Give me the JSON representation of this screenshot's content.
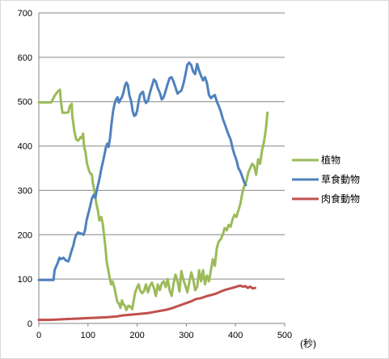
{
  "chart_data": {
    "type": "line",
    "xlim": [
      0,
      500
    ],
    "ylim": [
      0,
      700
    ],
    "x_ticks": [
      "0",
      "100",
      "200",
      "300",
      "400",
      "500"
    ],
    "y_ticks": [
      "0",
      "100",
      "200",
      "300",
      "400",
      "500",
      "600",
      "700"
    ],
    "x_unit_label": "(秒)",
    "grid": "horizontal",
    "legend_position": "right",
    "series": [
      {
        "name": "植物",
        "color": "#9bbb59",
        "points": [
          [
            0,
            498
          ],
          [
            25,
            498
          ],
          [
            33,
            515
          ],
          [
            38,
            522
          ],
          [
            43,
            527
          ],
          [
            45,
            500
          ],
          [
            48,
            475
          ],
          [
            55,
            475
          ],
          [
            60,
            476
          ],
          [
            63,
            490
          ],
          [
            67,
            495
          ],
          [
            68,
            470
          ],
          [
            72,
            435
          ],
          [
            76,
            415
          ],
          [
            80,
            412
          ],
          [
            85,
            420
          ],
          [
            88,
            418
          ],
          [
            90,
            428
          ],
          [
            92,
            400
          ],
          [
            95,
            385
          ],
          [
            98,
            360
          ],
          [
            102,
            345
          ],
          [
            105,
            338
          ],
          [
            108,
            335
          ],
          [
            110,
            315
          ],
          [
            113,
            300
          ],
          [
            117,
            270
          ],
          [
            120,
            255
          ],
          [
            123,
            232
          ],
          [
            127,
            240
          ],
          [
            130,
            225
          ],
          [
            133,
            196
          ],
          [
            136,
            165
          ],
          [
            138,
            140
          ],
          [
            141,
            122
          ],
          [
            144,
            103
          ],
          [
            147,
            88
          ],
          [
            150,
            95
          ],
          [
            154,
            80
          ],
          [
            157,
            62
          ],
          [
            160,
            48
          ],
          [
            163,
            45
          ],
          [
            166,
            35
          ],
          [
            169,
            52
          ],
          [
            172,
            43
          ],
          [
            175,
            40
          ],
          [
            178,
            30
          ],
          [
            182,
            40
          ],
          [
            186,
            38
          ],
          [
            190,
            32
          ],
          [
            193,
            52
          ],
          [
            196,
            70
          ],
          [
            200,
            82
          ],
          [
            203,
            88
          ],
          [
            206,
            75
          ],
          [
            210,
            68
          ],
          [
            214,
            73
          ],
          [
            218,
            88
          ],
          [
            222,
            70
          ],
          [
            226,
            85
          ],
          [
            230,
            92
          ],
          [
            234,
            80
          ],
          [
            238,
            62
          ],
          [
            242,
            88
          ],
          [
            246,
            75
          ],
          [
            250,
            90
          ],
          [
            254,
            95
          ],
          [
            258,
            82
          ],
          [
            262,
            100
          ],
          [
            266,
            75
          ],
          [
            270,
            62
          ],
          [
            274,
            90
          ],
          [
            278,
            110
          ],
          [
            282,
            95
          ],
          [
            286,
            72
          ],
          [
            290,
            118
          ],
          [
            294,
            98
          ],
          [
            298,
            85
          ],
          [
            302,
            70
          ],
          [
            306,
            92
          ],
          [
            310,
            115
          ],
          [
            314,
            100
          ],
          [
            318,
            75
          ],
          [
            322,
            82
          ],
          [
            326,
            120
          ],
          [
            330,
            95
          ],
          [
            334,
            120
          ],
          [
            338,
            88
          ],
          [
            342,
            108
          ],
          [
            346,
            95
          ],
          [
            350,
            120
          ],
          [
            354,
            145
          ],
          [
            358,
            130
          ],
          [
            362,
            170
          ],
          [
            366,
            185
          ],
          [
            370,
            190
          ],
          [
            374,
            200
          ],
          [
            378,
            215
          ],
          [
            382,
            210
          ],
          [
            386,
            222
          ],
          [
            390,
            218
          ],
          [
            394,
            235
          ],
          [
            398,
            245
          ],
          [
            402,
            240
          ],
          [
            406,
            255
          ],
          [
            410,
            270
          ],
          [
            414,
            295
          ],
          [
            418,
            310
          ],
          [
            422,
            320
          ],
          [
            426,
            340
          ],
          [
            430,
            350
          ],
          [
            434,
            360
          ],
          [
            438,
            355
          ],
          [
            442,
            335
          ],
          [
            446,
            370
          ],
          [
            450,
            360
          ],
          [
            454,
            390
          ],
          [
            458,
            410
          ],
          [
            462,
            440
          ],
          [
            465,
            475
          ]
        ]
      },
      {
        "name": "草食動物",
        "color": "#4f81bd",
        "points": [
          [
            0,
            98
          ],
          [
            30,
            98
          ],
          [
            32,
            120
          ],
          [
            35,
            128
          ],
          [
            38,
            135
          ],
          [
            42,
            148
          ],
          [
            45,
            145
          ],
          [
            50,
            148
          ],
          [
            55,
            142
          ],
          [
            60,
            140
          ],
          [
            63,
            150
          ],
          [
            67,
            165
          ],
          [
            70,
            175
          ],
          [
            73,
            190
          ],
          [
            76,
            200
          ],
          [
            80,
            205
          ],
          [
            84,
            203
          ],
          [
            88,
            202
          ],
          [
            91,
            200
          ],
          [
            94,
            210
          ],
          [
            97,
            232
          ],
          [
            100,
            245
          ],
          [
            104,
            262
          ],
          [
            108,
            282
          ],
          [
            112,
            290
          ],
          [
            115,
            283
          ],
          [
            118,
            300
          ],
          [
            121,
            315
          ],
          [
            124,
            330
          ],
          [
            127,
            348
          ],
          [
            130,
            362
          ],
          [
            133,
            378
          ],
          [
            136,
            395
          ],
          [
            139,
            405
          ],
          [
            142,
            398
          ],
          [
            145,
            420
          ],
          [
            148,
            452
          ],
          [
            151,
            478
          ],
          [
            154,
            495
          ],
          [
            157,
            505
          ],
          [
            160,
            510
          ],
          [
            163,
            498
          ],
          [
            166,
            505
          ],
          [
            169,
            510
          ],
          [
            172,
            520
          ],
          [
            175,
            535
          ],
          [
            178,
            543
          ],
          [
            181,
            538
          ],
          [
            184,
            515
          ],
          [
            188,
            500
          ],
          [
            191,
            478
          ],
          [
            194,
            468
          ],
          [
            197,
            470
          ],
          [
            200,
            480
          ],
          [
            203,
            500
          ],
          [
            206,
            515
          ],
          [
            209,
            520
          ],
          [
            212,
            522
          ],
          [
            215,
            505
          ],
          [
            218,
            497
          ],
          [
            222,
            502
          ],
          [
            226,
            520
          ],
          [
            230,
            535
          ],
          [
            234,
            550
          ],
          [
            238,
            545
          ],
          [
            242,
            530
          ],
          [
            246,
            520
          ],
          [
            250,
            505
          ],
          [
            254,
            510
          ],
          [
            258,
            525
          ],
          [
            262,
            540
          ],
          [
            266,
            553
          ],
          [
            270,
            555
          ],
          [
            274,
            545
          ],
          [
            278,
            532
          ],
          [
            282,
            518
          ],
          [
            286,
            522
          ],
          [
            290,
            525
          ],
          [
            294,
            540
          ],
          [
            298,
            560
          ],
          [
            302,
            583
          ],
          [
            306,
            588
          ],
          [
            310,
            582
          ],
          [
            314,
            568
          ],
          [
            318,
            562
          ],
          [
            322,
            585
          ],
          [
            326,
            570
          ],
          [
            330,
            558
          ],
          [
            334,
            548
          ],
          [
            338,
            555
          ],
          [
            342,
            542
          ],
          [
            346,
            515
          ],
          [
            350,
            508
          ],
          [
            354,
            512
          ],
          [
            358,
            515
          ],
          [
            362,
            500
          ],
          [
            366,
            490
          ],
          [
            370,
            478
          ],
          [
            374,
            462
          ],
          [
            378,
            450
          ],
          [
            382,
            437
          ],
          [
            386,
            425
          ],
          [
            390,
            415
          ],
          [
            394,
            395
          ],
          [
            398,
            380
          ],
          [
            402,
            368
          ],
          [
            406,
            350
          ],
          [
            410,
            342
          ],
          [
            414,
            330
          ],
          [
            418,
            318
          ],
          [
            421,
            312
          ]
        ]
      },
      {
        "name": "肉食動物",
        "color": "#c0504d",
        "points": [
          [
            0,
            8
          ],
          [
            20,
            8
          ],
          [
            40,
            9
          ],
          [
            60,
            10
          ],
          [
            80,
            11
          ],
          [
            100,
            12
          ],
          [
            120,
            13
          ],
          [
            140,
            14
          ],
          [
            150,
            15
          ],
          [
            160,
            16
          ],
          [
            170,
            18
          ],
          [
            180,
            19
          ],
          [
            190,
            20
          ],
          [
            200,
            21
          ],
          [
            210,
            22
          ],
          [
            220,
            23
          ],
          [
            230,
            25
          ],
          [
            240,
            27
          ],
          [
            250,
            29
          ],
          [
            260,
            31
          ],
          [
            270,
            34
          ],
          [
            280,
            38
          ],
          [
            290,
            42
          ],
          [
            300,
            46
          ],
          [
            310,
            50
          ],
          [
            320,
            55
          ],
          [
            330,
            57
          ],
          [
            340,
            61
          ],
          [
            350,
            64
          ],
          [
            360,
            67
          ],
          [
            370,
            72
          ],
          [
            380,
            76
          ],
          [
            390,
            79
          ],
          [
            400,
            82
          ],
          [
            405,
            84
          ],
          [
            410,
            85
          ],
          [
            415,
            83
          ],
          [
            420,
            84
          ],
          [
            425,
            80
          ],
          [
            430,
            83
          ],
          [
            435,
            79
          ],
          [
            440,
            80
          ]
        ]
      }
    ]
  }
}
